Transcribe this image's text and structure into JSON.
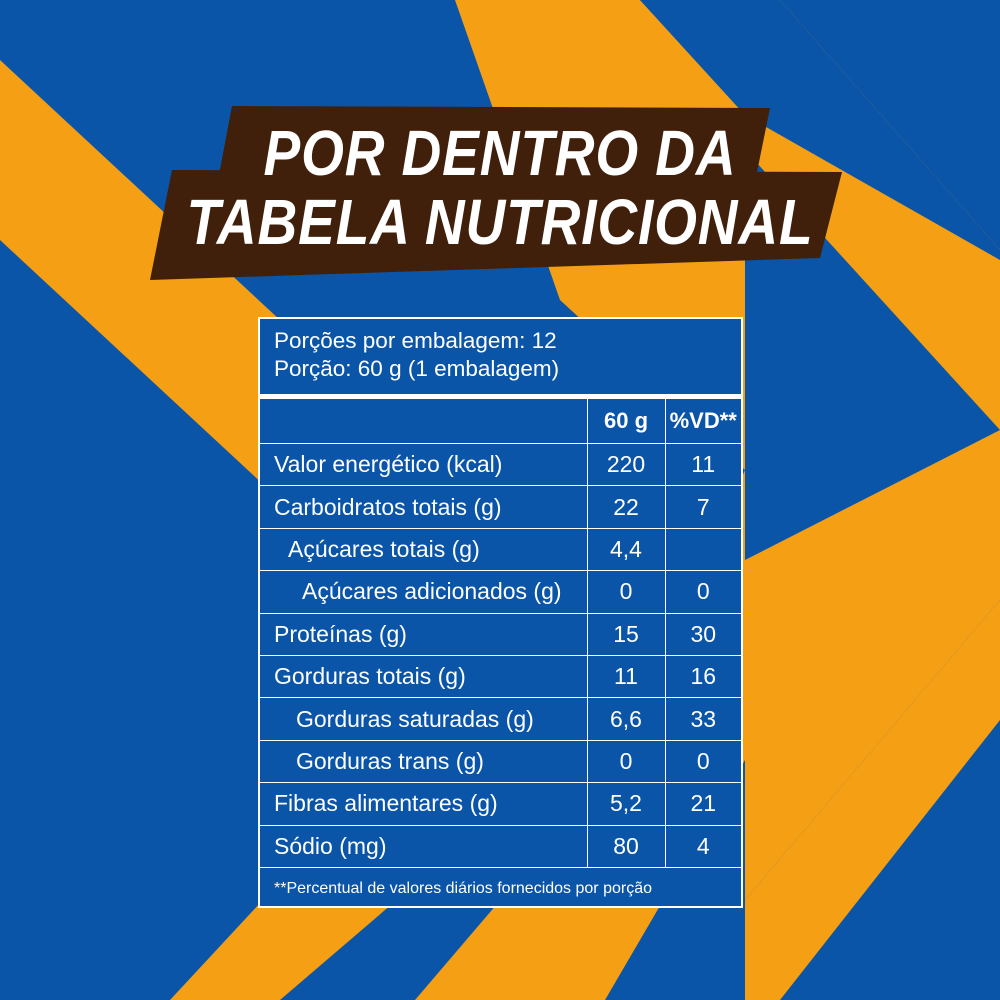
{
  "colors": {
    "background_blue": "#0a55a8",
    "stripe_orange": "#f5a014",
    "banner_brown": "#40200a",
    "text_white": "#ffffff"
  },
  "title": {
    "line1": "POR DENTRO DA",
    "line2": "TABELA NUTRICIONAL"
  },
  "nutrition": {
    "servings_per_package": "Porções por embalagem: 12",
    "serving_size": "Porção: 60 g (1 embalagem)",
    "columns": [
      "",
      "60 g",
      "%VD**"
    ],
    "rows": [
      {
        "label": "Valor energético (kcal)",
        "amount": "220",
        "dv": "11"
      },
      {
        "label": "Carboidratos totais (g)",
        "amount": "22",
        "dv": "7"
      },
      {
        "label": "Açúcares totais (g)",
        "amount": "4,4",
        "dv": ""
      },
      {
        "label": "Açúcares adicionados (g)",
        "amount": "0",
        "dv": "0"
      },
      {
        "label": "Proteínas (g)",
        "amount": "15",
        "dv": "30"
      },
      {
        "label": "Gorduras totais (g)",
        "amount": "11",
        "dv": "16"
      },
      {
        "label": "Gorduras saturadas (g)",
        "amount": "6,6",
        "dv": "33"
      },
      {
        "label": "Gorduras trans (g)",
        "amount": "0",
        "dv": "0"
      },
      {
        "label": "Fibras alimentares (g)",
        "amount": "5,2",
        "dv": "21"
      },
      {
        "label": "Sódio (mg)",
        "amount": "80",
        "dv": "4"
      }
    ],
    "footnote": "**Percentual de valores diários fornecidos por porção"
  }
}
